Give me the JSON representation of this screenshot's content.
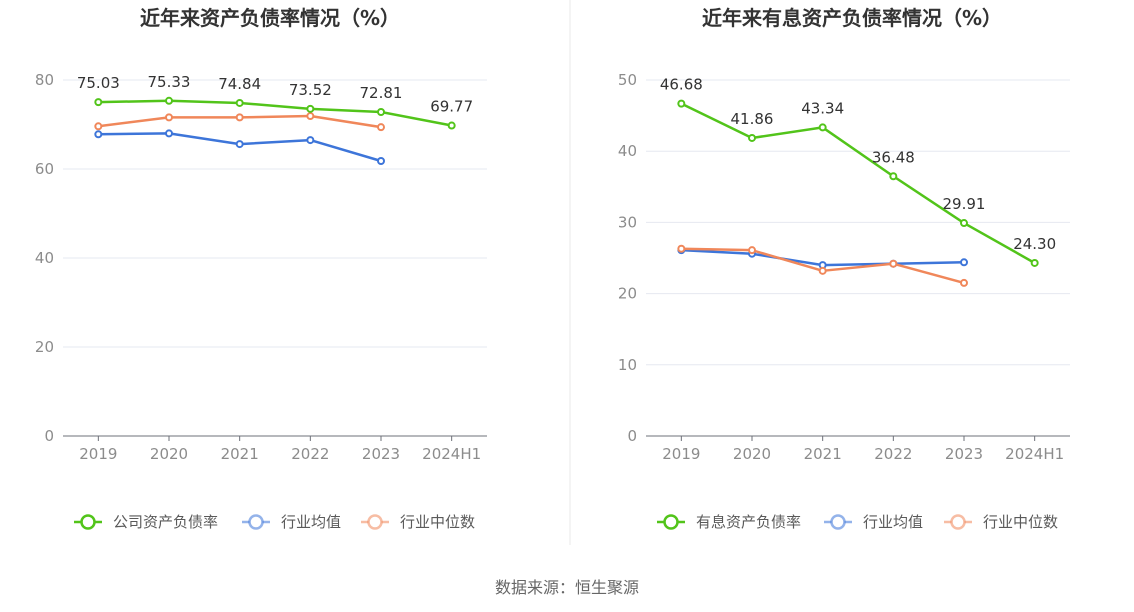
{
  "source": "数据来源：恒生聚源",
  "chart_data": [
    {
      "type": "line",
      "title": "近年来资产负债率情况（%）",
      "categories": [
        "2019",
        "2020",
        "2021",
        "2022",
        "2023",
        "2024H1"
      ],
      "ylim": [
        0,
        80
      ],
      "yticks": [
        0,
        20,
        40,
        60,
        80
      ],
      "grid": true,
      "legend_position": "bottom",
      "series": [
        {
          "name": "公司资产负债率",
          "color": "#52c41a",
          "labeled": true,
          "values": [
            75.03,
            75.33,
            74.84,
            73.52,
            72.81,
            69.77
          ],
          "labels": [
            "75.03",
            "75.33",
            "74.84",
            "73.52",
            "72.81",
            "69.77"
          ]
        },
        {
          "name": "行业均值",
          "color": "#3d75d9",
          "labeled": false,
          "values": [
            67.8,
            68.0,
            65.6,
            66.5,
            61.8,
            null
          ]
        },
        {
          "name": "行业中位数",
          "color": "#f0875a",
          "labeled": false,
          "values": [
            69.6,
            71.6,
            71.6,
            71.9,
            69.4,
            null
          ]
        }
      ]
    },
    {
      "type": "line",
      "title": "近年来有息资产负债率情况（%）",
      "categories": [
        "2019",
        "2020",
        "2021",
        "2022",
        "2023",
        "2024H1"
      ],
      "ylim": [
        0,
        50
      ],
      "yticks": [
        0,
        10,
        20,
        30,
        40,
        50
      ],
      "grid": true,
      "legend_position": "bottom",
      "series": [
        {
          "name": "有息资产负债率",
          "color": "#52c41a",
          "labeled": true,
          "values": [
            46.68,
            41.86,
            43.34,
            36.48,
            29.91,
            24.3
          ],
          "labels": [
            "46.68",
            "41.86",
            "43.34",
            "36.48",
            "29.91",
            "24.30"
          ]
        },
        {
          "name": "行业均值",
          "color": "#3d75d9",
          "labeled": false,
          "values": [
            26.1,
            25.6,
            24.0,
            24.2,
            24.4,
            null
          ]
        },
        {
          "name": "行业中位数",
          "color": "#f0875a",
          "labeled": false,
          "values": [
            26.3,
            26.1,
            23.2,
            24.2,
            21.5,
            null
          ]
        }
      ]
    }
  ]
}
